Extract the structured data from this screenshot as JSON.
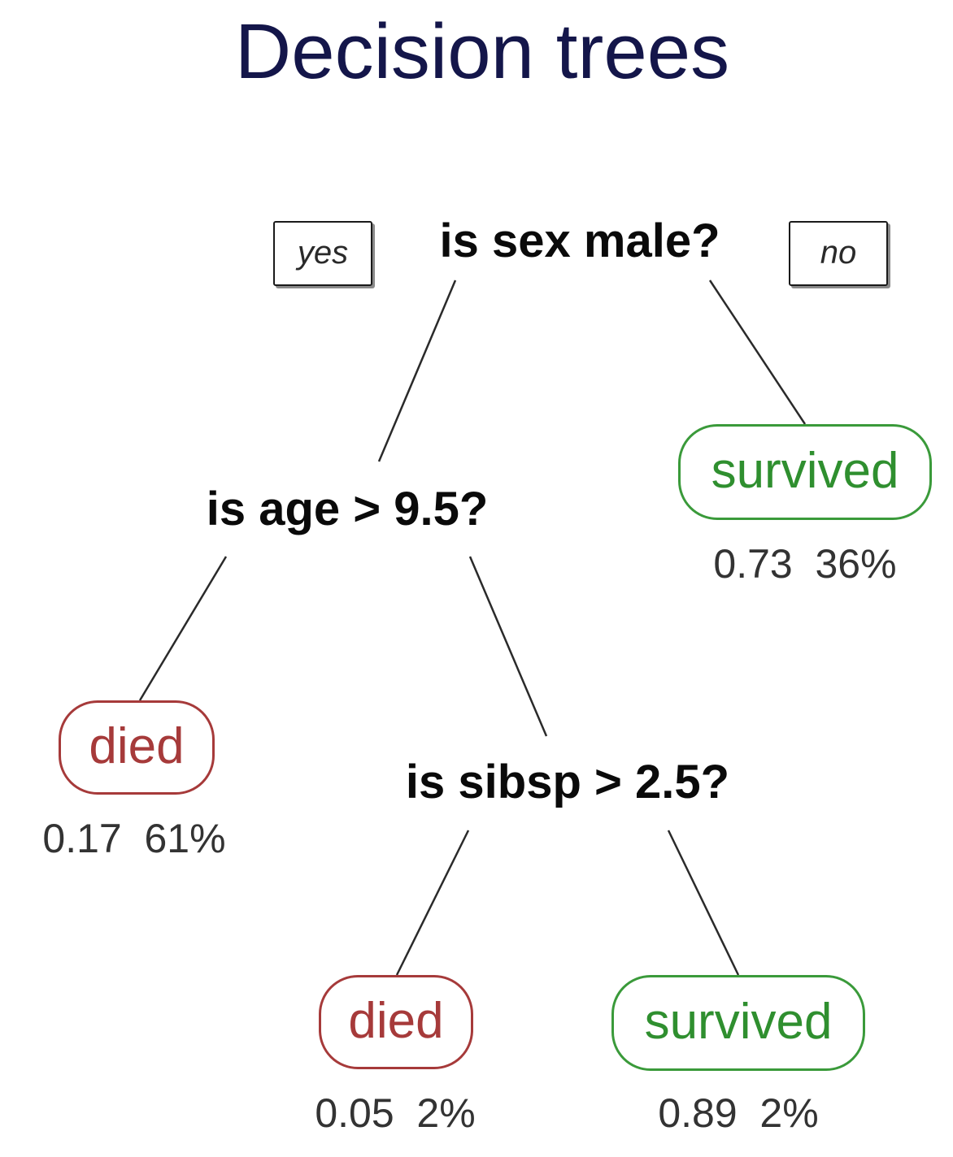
{
  "title": "Decision trees",
  "tree": {
    "root": {
      "question": "is sex male?",
      "yes_label": "yes",
      "no_label": "no"
    },
    "age_split": {
      "question": "is age > 9.5?"
    },
    "sibsp_split": {
      "question": "is sibsp > 2.5?"
    },
    "leaves": [
      {
        "outcome": "survived",
        "probability": "0.73",
        "percent": "36%",
        "stats": "0.73  36%"
      },
      {
        "outcome": "died",
        "probability": "0.17",
        "percent": "61%",
        "stats": "0.17  61%"
      },
      {
        "outcome": "died",
        "probability": "0.05",
        "percent": "2%",
        "stats": "0.05  2%"
      },
      {
        "outcome": "survived",
        "probability": "0.89",
        "percent": "2%",
        "stats": "0.89  2%"
      }
    ]
  },
  "colors": {
    "title": "#14164a",
    "died": "#a63a3a",
    "survived": "#2f8f2f",
    "edge": "#2a2a2a"
  }
}
